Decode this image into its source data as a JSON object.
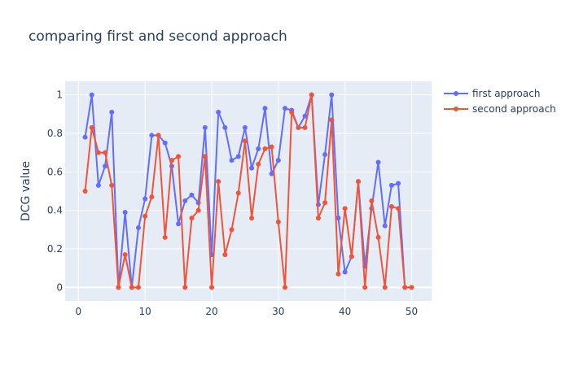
{
  "chart_data": {
    "type": "line",
    "title": "comparing first and second approach",
    "xlabel": "",
    "ylabel": "DCG value",
    "xlim": [
      -2,
      53
    ],
    "ylim": [
      -0.07,
      1.07
    ],
    "xticks": [
      0,
      10,
      20,
      30,
      40,
      50
    ],
    "yticks": [
      0,
      0.2,
      0.4,
      0.6,
      0.8,
      1
    ],
    "grid": true,
    "legend": "top-right",
    "x": [
      1,
      2,
      3,
      4,
      5,
      6,
      7,
      8,
      9,
      10,
      11,
      12,
      13,
      14,
      15,
      16,
      17,
      18,
      19,
      20,
      21,
      22,
      23,
      24,
      25,
      26,
      27,
      28,
      29,
      30,
      31,
      32,
      33,
      34,
      35,
      36,
      37,
      38,
      39,
      40,
      41,
      42,
      43,
      44,
      45,
      46,
      47,
      48,
      49,
      50
    ],
    "series": [
      {
        "name": "first approach",
        "color": "#636efa",
        "values": [
          0.78,
          1.0,
          0.53,
          0.63,
          0.91,
          0.0,
          0.39,
          0.0,
          0.31,
          0.46,
          0.79,
          0.79,
          0.75,
          0.63,
          0.33,
          0.45,
          0.48,
          0.44,
          0.83,
          0.17,
          0.91,
          0.83,
          0.66,
          0.68,
          0.83,
          0.62,
          0.72,
          0.93,
          0.59,
          0.66,
          0.93,
          0.92,
          0.83,
          0.89,
          1.0,
          0.43,
          0.69,
          1.0,
          0.36,
          0.08,
          0.16,
          0.55,
          0.11,
          0.41,
          0.65,
          0.32,
          0.53,
          0.54,
          0.0,
          0.0
        ]
      },
      {
        "name": "second approach",
        "color": "#ef553b",
        "values": [
          0.5,
          0.83,
          0.7,
          0.7,
          0.53,
          0.0,
          0.17,
          0.0,
          0.0,
          0.37,
          0.47,
          0.79,
          0.26,
          0.66,
          0.68,
          0.0,
          0.36,
          0.4,
          0.68,
          0.0,
          0.55,
          0.17,
          0.3,
          0.49,
          0.76,
          0.36,
          0.64,
          0.72,
          0.73,
          0.34,
          0.0,
          0.91,
          0.83,
          0.83,
          1.0,
          0.36,
          0.44,
          0.87,
          0.07,
          0.41,
          0.16,
          0.55,
          0.0,
          0.45,
          0.26,
          0.0,
          0.42,
          0.41,
          0.0,
          0.0
        ]
      }
    ]
  }
}
